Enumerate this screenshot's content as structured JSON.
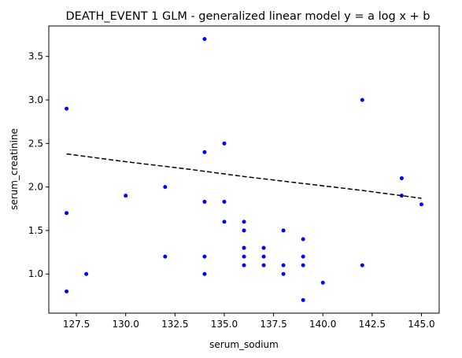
{
  "chart_data": {
    "type": "scatter",
    "title": "DEATH_EVENT 1 GLM - generalized linear model  y = a log x + b",
    "xlabel": "serum_sodium",
    "ylabel": "serum_creatinine",
    "xlim": [
      126.1,
      145.9
    ],
    "ylim": [
      0.55,
      3.85
    ],
    "xticks": [
      "127.5",
      "130.0",
      "132.5",
      "135.0",
      "137.5",
      "140.0",
      "142.5",
      "145.0"
    ],
    "yticks": [
      "1.0",
      "1.5",
      "2.0",
      "2.5",
      "3.0",
      "3.5"
    ],
    "grid": false,
    "point_color": "#0000ff",
    "line_color": "#000000",
    "line_style": "dashed",
    "points": [
      {
        "x": 127,
        "y": 2.9
      },
      {
        "x": 127,
        "y": 1.7
      },
      {
        "x": 127,
        "y": 0.8
      },
      {
        "x": 128,
        "y": 1.0
      },
      {
        "x": 130,
        "y": 1.9
      },
      {
        "x": 132,
        "y": 2.0
      },
      {
        "x": 132,
        "y": 1.2
      },
      {
        "x": 134,
        "y": 3.7
      },
      {
        "x": 134,
        "y": 2.4
      },
      {
        "x": 134,
        "y": 1.83
      },
      {
        "x": 134,
        "y": 1.2
      },
      {
        "x": 134,
        "y": 1.0
      },
      {
        "x": 135,
        "y": 2.5
      },
      {
        "x": 135,
        "y": 1.83
      },
      {
        "x": 135,
        "y": 1.6
      },
      {
        "x": 136,
        "y": 1.6
      },
      {
        "x": 136,
        "y": 1.5
      },
      {
        "x": 136,
        "y": 1.3
      },
      {
        "x": 136,
        "y": 1.2
      },
      {
        "x": 136,
        "y": 1.1
      },
      {
        "x": 137,
        "y": 1.3
      },
      {
        "x": 137,
        "y": 1.2
      },
      {
        "x": 137,
        "y": 1.1
      },
      {
        "x": 138,
        "y": 1.5
      },
      {
        "x": 138,
        "y": 1.1
      },
      {
        "x": 138,
        "y": 1.0
      },
      {
        "x": 139,
        "y": 1.4
      },
      {
        "x": 139,
        "y": 1.2
      },
      {
        "x": 139,
        "y": 1.1
      },
      {
        "x": 139,
        "y": 0.7
      },
      {
        "x": 140,
        "y": 0.9
      },
      {
        "x": 142,
        "y": 3.0
      },
      {
        "x": 142,
        "y": 1.1
      },
      {
        "x": 144,
        "y": 2.1
      },
      {
        "x": 144,
        "y": 1.9
      },
      {
        "x": 145,
        "y": 1.8
      }
    ],
    "fit_line": [
      {
        "x": 127,
        "y": 2.38
      },
      {
        "x": 130,
        "y": 2.29
      },
      {
        "x": 133,
        "y": 2.21
      },
      {
        "x": 136,
        "y": 2.12
      },
      {
        "x": 139,
        "y": 2.04
      },
      {
        "x": 142,
        "y": 1.96
      },
      {
        "x": 145,
        "y": 1.87
      }
    ]
  }
}
